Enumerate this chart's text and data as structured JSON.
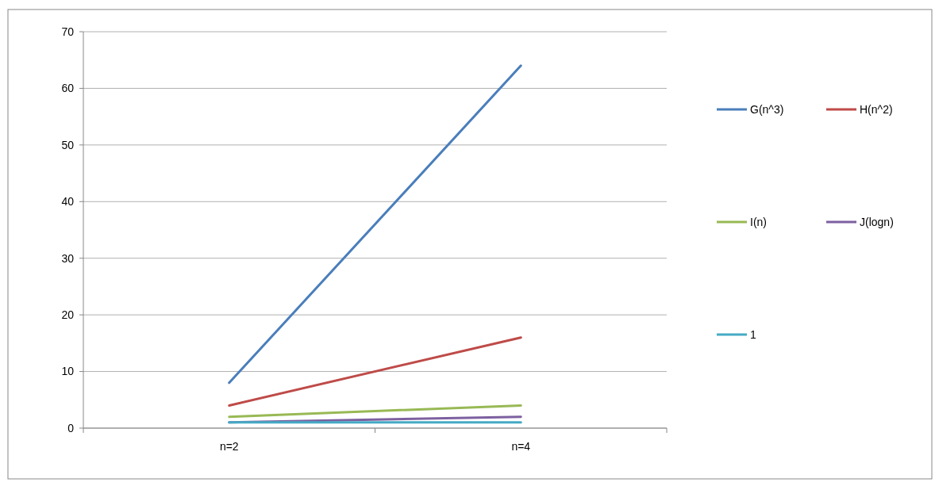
{
  "chart_data": {
    "type": "line",
    "categories": [
      "n=2",
      "n=4"
    ],
    "series": [
      {
        "name": "G(n^3)",
        "color": "#4a7ebb",
        "values": [
          8,
          64
        ]
      },
      {
        "name": "H(n^2)",
        "color": "#be4b48",
        "values": [
          4,
          16
        ]
      },
      {
        "name": "I(n)",
        "color": "#98b954",
        "values": [
          2,
          4
        ]
      },
      {
        "name": "J(logn)",
        "color": "#7d60a0",
        "values": [
          1,
          2
        ]
      },
      {
        "name": "1",
        "color": "#46aac5",
        "values": [
          1,
          1
        ]
      }
    ],
    "ylim": [
      0,
      70
    ],
    "yticks": [
      0,
      10,
      20,
      30,
      40,
      50,
      60,
      70
    ],
    "grid": "y",
    "legend": "right",
    "marker": "none"
  }
}
